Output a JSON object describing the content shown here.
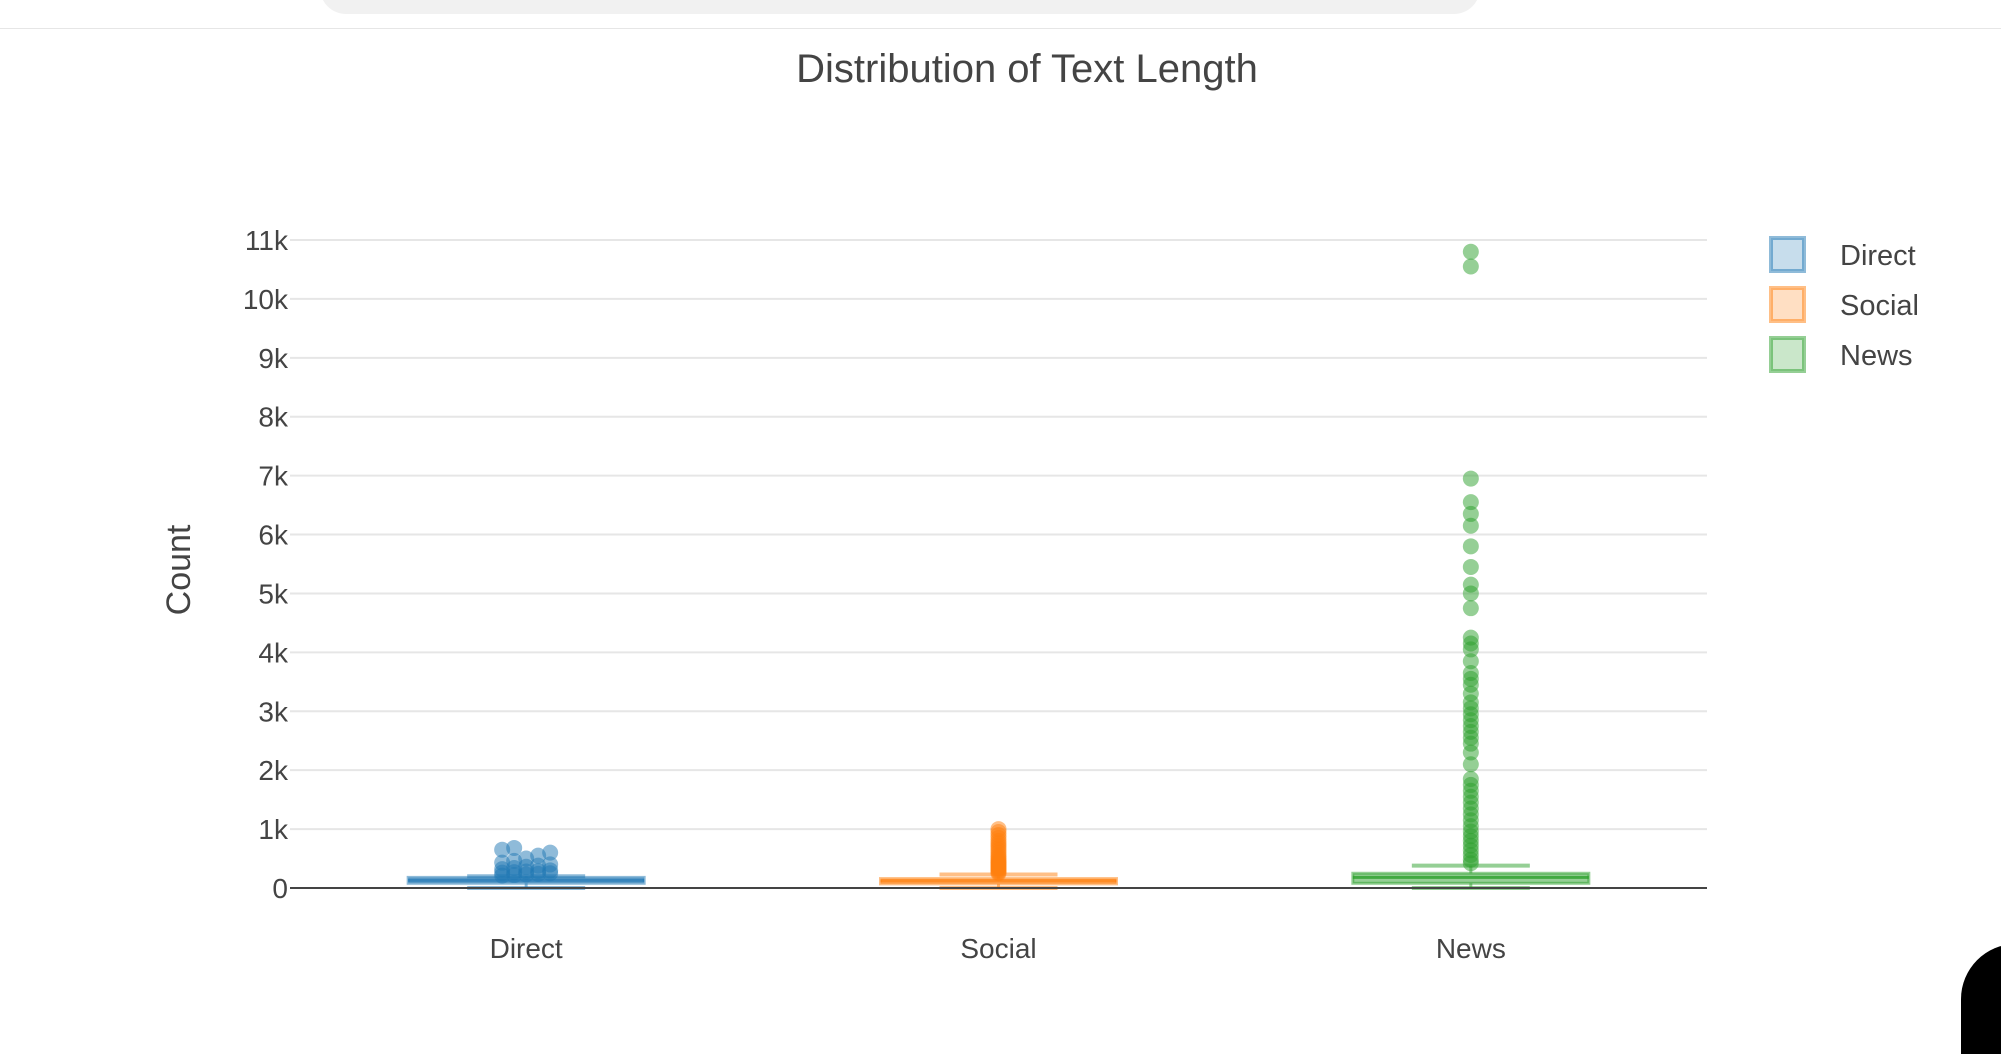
{
  "chart_data": {
    "type": "box",
    "title": "Distribution of Text Length",
    "xlabel": "",
    "ylabel": "Count",
    "ylim": [
      0,
      11000
    ],
    "yticks": [
      0,
      1000,
      2000,
      3000,
      4000,
      5000,
      6000,
      7000,
      8000,
      9000,
      10000,
      11000
    ],
    "ytick_labels": [
      "0",
      "1k",
      "2k",
      "3k",
      "4k",
      "5k",
      "6k",
      "7k",
      "8k",
      "9k",
      "10k",
      "11k"
    ],
    "grid": true,
    "legend": "top-right",
    "categories": [
      "Direct",
      "Social",
      "News"
    ],
    "series": [
      {
        "name": "Direct",
        "color": "#1f77b4",
        "min": 0,
        "q1": 80,
        "median": 130,
        "q3": 180,
        "max": 200,
        "outliers": [
          210,
          220,
          230,
          240,
          250,
          260,
          270,
          280,
          290,
          300,
          320,
          340,
          360,
          380,
          400,
          430,
          460,
          500,
          550,
          600,
          650,
          680
        ]
      },
      {
        "name": "Social",
        "color": "#ff7f0e",
        "min": 0,
        "q1": 70,
        "median": 120,
        "q3": 160,
        "max": 230,
        "outliers": [
          250,
          270,
          290,
          310,
          330,
          350,
          370,
          390,
          410,
          430,
          450,
          470,
          500,
          530,
          560,
          600,
          640,
          680,
          720,
          760,
          800,
          850,
          900,
          950,
          1000
        ]
      },
      {
        "name": "News",
        "color": "#2ca02c",
        "min": 0,
        "q1": 80,
        "median": 180,
        "q3": 250,
        "max": 380,
        "outliers": [
          420,
          480,
          560,
          640,
          720,
          800,
          880,
          960,
          1050,
          1150,
          1250,
          1350,
          1450,
          1550,
          1650,
          1750,
          1850,
          2100,
          2300,
          2450,
          2550,
          2650,
          2750,
          2850,
          2950,
          3050,
          3150,
          3300,
          3450,
          3550,
          3650,
          3850,
          4050,
          4150,
          4250,
          4750,
          5000,
          5150,
          5450,
          5800,
          6150,
          6350,
          6550,
          6950,
          10550,
          10800
        ]
      }
    ]
  }
}
